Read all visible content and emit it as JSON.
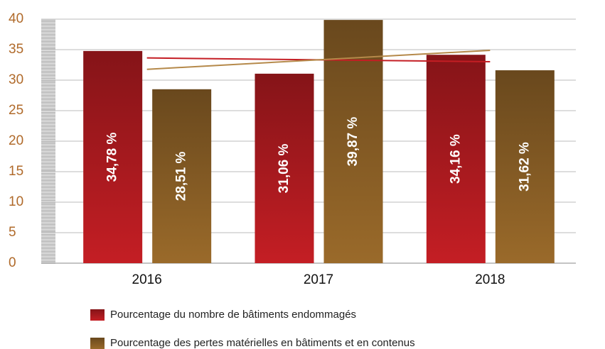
{
  "chart_data": {
    "type": "bar",
    "categories": [
      "2016",
      "2017",
      "2018"
    ],
    "series": [
      {
        "name": "Pourcentage du nombre de bâtiments endommagés",
        "color": "#c41e24",
        "values": [
          34.78,
          31.06,
          34.16
        ],
        "value_labels": [
          "34,78 %",
          "31,06 %",
          "34,16 %"
        ]
      },
      {
        "name": "Pourcentage des pertes matérielles en bâtiments et en contenus",
        "color": "#9a6a2a",
        "values": [
          28.51,
          39.87,
          31.62
        ],
        "value_labels": [
          "28,51 %",
          "39,87 %",
          "31,62 %"
        ]
      }
    ],
    "ylim": [
      0,
      40
    ],
    "yticks": [
      0,
      5,
      10,
      15,
      20,
      25,
      30,
      35,
      40
    ],
    "grid": true,
    "trendline": true,
    "legend": "bottom"
  }
}
